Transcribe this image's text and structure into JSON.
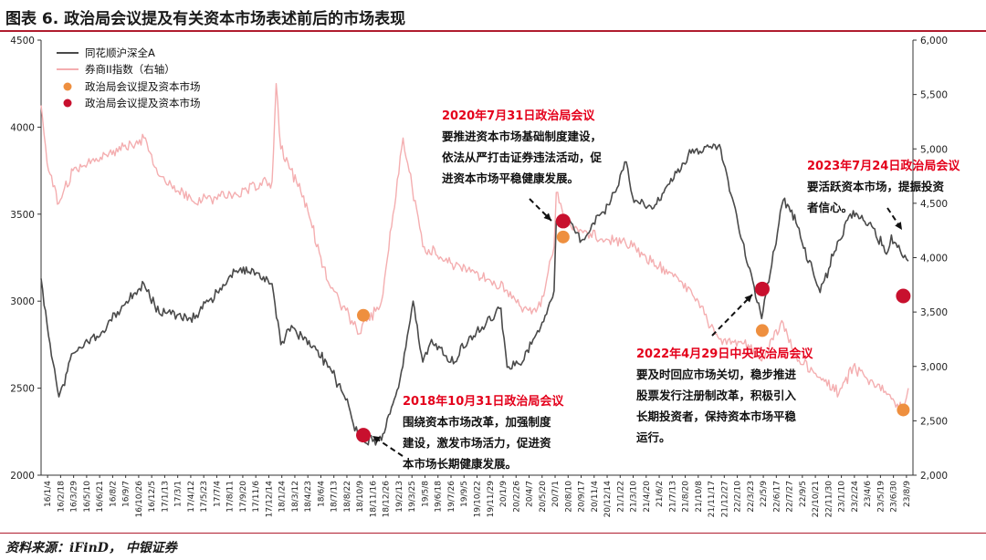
{
  "header": {
    "title": "图表 6. 政治局会议提及有关资本市场表述前后的市场表现"
  },
  "footer": {
    "source": "资料来源：iFinD， 中银证券"
  },
  "colors": {
    "index": "#4a4a4a",
    "broker": "#f4aeb0",
    "orange": "#ee8f3f",
    "red": "#c8102e",
    "accent": "#b01c2e"
  },
  "chart_data": {
    "type": "line",
    "y_left": {
      "ylim": [
        2000,
        4500
      ],
      "ticks": [
        2000,
        2500,
        3000,
        3500,
        4000,
        4500
      ]
    },
    "y_right": {
      "ylim": [
        2000,
        6000
      ],
      "ticks": [
        "2,000",
        "2,500",
        "3,000",
        "3,500",
        "4,000",
        "4,500",
        "5,000",
        "5,500",
        "6,000"
      ]
    },
    "x_tick_labels": [
      "16/1/4",
      "16/2/18",
      "16/3/29",
      "16/5/10",
      "16/6/21",
      "16/8/2",
      "16/9/7",
      "16/10/26",
      "16/12/5",
      "17/1/13",
      "17/3/1",
      "17/4/12",
      "17/5/23",
      "17/7/4",
      "17/8/11",
      "17/9/20",
      "17/11/6",
      "17/12/14",
      "18/1/24",
      "18/3/12",
      "18/4/23",
      "18/6/4",
      "18/7/13",
      "18/8/22",
      "18/10/9",
      "18/11/16",
      "18/12/26",
      "19/2/13",
      "19/3/25",
      "19/5/8",
      "19/6/18",
      "19/7/26",
      "19/9/5",
      "19/10/22",
      "19/11/29",
      "20/1/9",
      "20/2/26",
      "20/4/7",
      "20/5/20",
      "20/7/1",
      "20/8/10",
      "20/9/17",
      "20/11/4",
      "20/12/14",
      "21/1/22",
      "21/3/10",
      "21/4/20",
      "21/6/2",
      "21/7/13",
      "21/8/20",
      "21/10/8",
      "21/11/17",
      "21/12/27",
      "22/2/10",
      "22/3/23",
      "22/5/9",
      "22/6/17",
      "22/7/27",
      "22/9/5",
      "22/10/21",
      "22/11/30",
      "23/1/10",
      "23/2/24",
      "23/4/6",
      "23/5/19",
      "23/6/30",
      "23/8/9"
    ],
    "legend": [
      "同花顺沪深全A",
      "券商II指数（右轴）",
      "政治局会议提及资本市场",
      "政治局会议提及资本市场"
    ],
    "series": [
      {
        "name": "同花顺沪深全A",
        "axis": "left",
        "x": [
          "16/1/4",
          "16/1/28",
          "16/3/1",
          "16/4/15",
          "16/7/15",
          "16/11/28",
          "17/1/16",
          "17/5/10",
          "17/9/15",
          "17/11/13",
          "18/1/12",
          "18/2/9",
          "18/3/15",
          "18/7/5",
          "18/9/14",
          "18/10/18",
          "18/12/28",
          "19/2/25",
          "19/4/8",
          "19/5/9",
          "19/6/6",
          "19/8/6",
          "19/11/29",
          "20/1/14",
          "20/2/3",
          "20/3/23",
          "20/5/20",
          "20/7/2",
          "20/7/9",
          "20/8/11",
          "20/9/28",
          "20/12/31",
          "21/2/18",
          "21/3/10",
          "21/5/12",
          "21/9/13",
          "21/12/13",
          "22/3/15",
          "22/4/27",
          "22/7/5",
          "22/8/15",
          "22/10/31",
          "22/12/30",
          "23/2/14",
          "23/4/19",
          "23/5/31",
          "23/6/16",
          "23/7/24",
          "23/8/9"
        ],
        "values": [
          3130,
          2800,
          2450,
          2700,
          2820,
          3100,
          2930,
          2900,
          3170,
          3180,
          3100,
          2750,
          2860,
          2650,
          2400,
          2200,
          2200,
          2550,
          3000,
          2650,
          2780,
          2650,
          2880,
          2960,
          2620,
          2650,
          2850,
          3060,
          3460,
          3480,
          3350,
          3580,
          3800,
          3600,
          3530,
          3850,
          3900,
          3200,
          2900,
          3580,
          3450,
          3050,
          3350,
          3520,
          3420,
          3270,
          3380,
          3250,
          3230
        ]
      },
      {
        "name": "券商II指数（右轴）",
        "axis": "right",
        "x": [
          "16/1/4",
          "16/1/28",
          "16/3/1",
          "16/4/15",
          "16/11/28",
          "17/1/16",
          "17/5/10",
          "17/9/15",
          "18/1/12",
          "18/1/25",
          "18/2/9",
          "18/5/2",
          "18/7/5",
          "18/10/18",
          "18/12/28",
          "19/3/7",
          "19/5/9",
          "19/8/6",
          "19/11/29",
          "20/2/3",
          "20/3/23",
          "20/5/20",
          "20/7/2",
          "20/7/9",
          "20/8/11",
          "20/9/28",
          "21/3/10",
          "21/9/13",
          "21/12/13",
          "22/3/15",
          "22/4/27",
          "22/7/5",
          "22/8/15",
          "22/10/31",
          "22/12/30",
          "23/2/14",
          "23/4/19",
          "23/6/16",
          "23/7/24",
          "23/8/9"
        ],
        "values": [
          5400,
          4800,
          4500,
          4800,
          5100,
          4750,
          4500,
          4600,
          4700,
          5600,
          5000,
          4500,
          3800,
          3300,
          3600,
          5100,
          4100,
          3950,
          3800,
          3700,
          3500,
          3550,
          4100,
          4600,
          4300,
          4250,
          4100,
          3700,
          3250,
          3200,
          3050,
          3400,
          3100,
          2900,
          2750,
          3000,
          2850,
          2700,
          2600,
          2800
        ]
      },
      {
        "name": "政治局会议提及资本市场",
        "axis": "right",
        "marker": "orange",
        "x": [
          "18/10/31",
          "20/7/31",
          "22/4/29",
          "23/7/24"
        ],
        "values": [
          3470,
          4190,
          3330,
          2600
        ]
      },
      {
        "name": "政治局会议提及资本市场",
        "axis": "left",
        "marker": "red",
        "x": [
          "18/10/31",
          "20/7/31",
          "22/4/29",
          "23/7/24"
        ],
        "values": [
          2230,
          3460,
          3070,
          3030
        ]
      }
    ],
    "annotations": [
      {
        "title": "2018年10月31日政治局会议",
        "lines": [
          "围绕资本市场改革，加强制度",
          "建设，激发市场活力，促进资",
          "本市场长期健康发展。"
        ]
      },
      {
        "title": "2020年7月31日政治局会议",
        "lines": [
          "要推进资本市场基础制度建设，",
          "依法从严打击证券违法活动，促",
          "进资本市场平稳健康发展。"
        ]
      },
      {
        "title": "2022年4月29日中央政治局会议",
        "lines": [
          "要及时回应市场关切，稳步推进",
          "股票发行注册制改革，积极引入",
          "长期投资者，保持资本市场平稳",
          "运行。"
        ]
      },
      {
        "title": "2023年7月24日政治局会议",
        "lines": [
          "要活跃资本市场，提振投资",
          "者信心。"
        ]
      }
    ]
  }
}
